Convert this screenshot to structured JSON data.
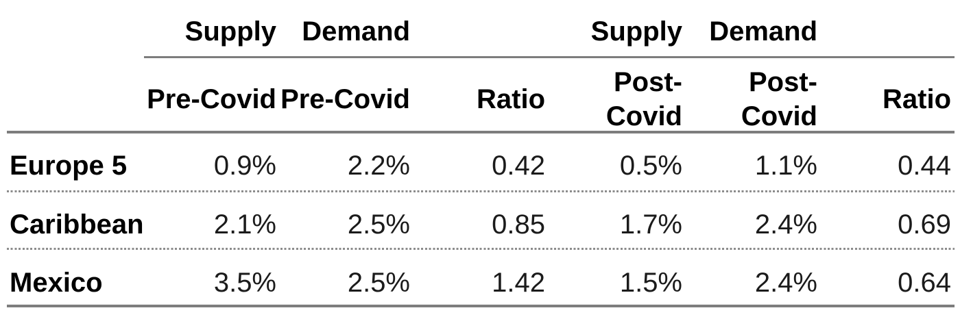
{
  "chart_data": {
    "type": "table",
    "title": "",
    "group_headers": [
      "Supply",
      "Demand",
      "Supply",
      "Demand"
    ],
    "column_headers": [
      "Pre-Covid",
      "Pre-Covid",
      "Ratio",
      "Post-\nCovid",
      "Post-\nCovid",
      "Ratio"
    ],
    "rows": [
      {
        "label": "Europe 5",
        "values": [
          "0.9%",
          "2.2%",
          "0.42",
          "0.5%",
          "1.1%",
          "0.44"
        ]
      },
      {
        "label": "Caribbean",
        "values": [
          "2.1%",
          "2.5%",
          "0.85",
          "1.7%",
          "2.4%",
          "0.69"
        ]
      },
      {
        "label": "Mexico",
        "values": [
          "3.5%",
          "2.5%",
          "1.42",
          "1.5%",
          "2.4%",
          "0.64"
        ]
      }
    ],
    "layout": {
      "legend": "none",
      "grid": "horizontal rules only",
      "alignment": "row labels left, all data columns right-aligned"
    }
  },
  "colors": {
    "rule_gray": "#7d7d7d",
    "dotted_gray": "#8c8c8c",
    "text_black": "#0a0a0a",
    "background": "#ffffff"
  }
}
